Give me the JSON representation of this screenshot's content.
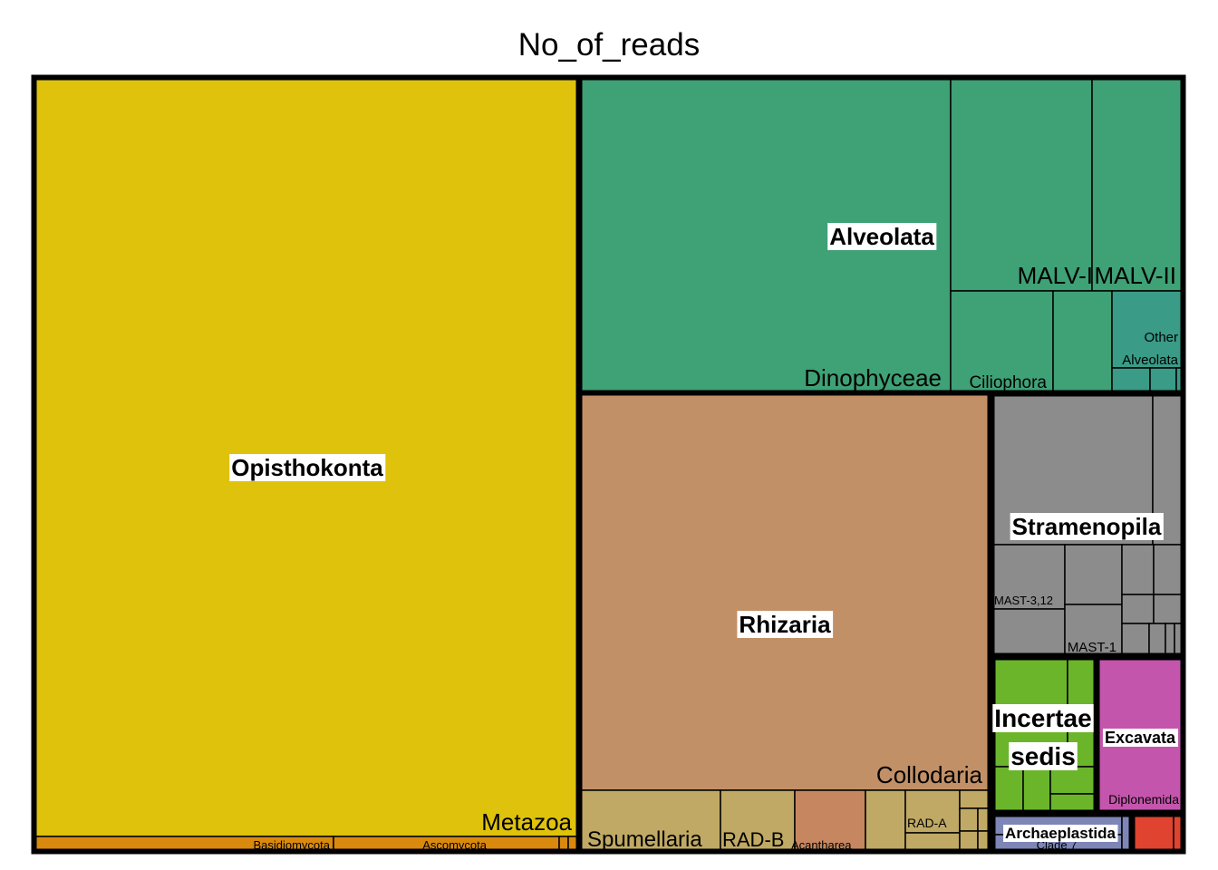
{
  "chart_data": {
    "type": "treemap",
    "title": "No_of_reads",
    "groups": [
      {
        "name": "Opisthokonta",
        "color": "#dfc20b",
        "subgroups": [
          {
            "name": "Metazoa",
            "color": "#dfc20b"
          },
          {
            "name": "Basidiomycota",
            "color": "#d9890e"
          },
          {
            "name": "Ascomycota",
            "color": "#d9890e"
          }
        ]
      },
      {
        "name": "Alveolata",
        "color": "#3fa176",
        "subgroups": [
          {
            "name": "Dinophyceae",
            "color": "#3fa176"
          },
          {
            "name": "MALV-I",
            "color": "#3fa176"
          },
          {
            "name": "MALV-II",
            "color": "#3fa176"
          },
          {
            "name": "Ciliophora",
            "color": "#3fa176"
          },
          {
            "name": "Other Alveolata",
            "color": "#3a9b87"
          }
        ]
      },
      {
        "name": "Rhizaria",
        "color": "#c29067",
        "subgroups": [
          {
            "name": "Collodaria",
            "color": "#c29067"
          },
          {
            "name": "Spumellaria",
            "color": "#c0a964"
          },
          {
            "name": "RAD-B",
            "color": "#c0a964"
          },
          {
            "name": "Acantharea",
            "color": "#c68760"
          },
          {
            "name": "RAD-A",
            "color": "#c0a964"
          }
        ]
      },
      {
        "name": "Stramenopila",
        "color": "#8c8c8c",
        "subgroups": [
          {
            "name": "MAST-3,12",
            "color": "#8c8c8c"
          },
          {
            "name": "MAST-1",
            "color": "#8c8c8c"
          }
        ]
      },
      {
        "name": "Incertae sedis",
        "color": "#6bb52b",
        "subgroups": []
      },
      {
        "name": "Excavata",
        "color": "#c455ac",
        "subgroups": [
          {
            "name": "Diplonemida",
            "color": "#c455ac"
          }
        ]
      },
      {
        "name": "Archaeplastida",
        "color": "#7d86b6",
        "subgroups": [
          {
            "name": "Clade 7",
            "color": "#7d86b6"
          }
        ]
      },
      {
        "name": "",
        "color": "#e0432f",
        "subgroups": []
      }
    ]
  }
}
